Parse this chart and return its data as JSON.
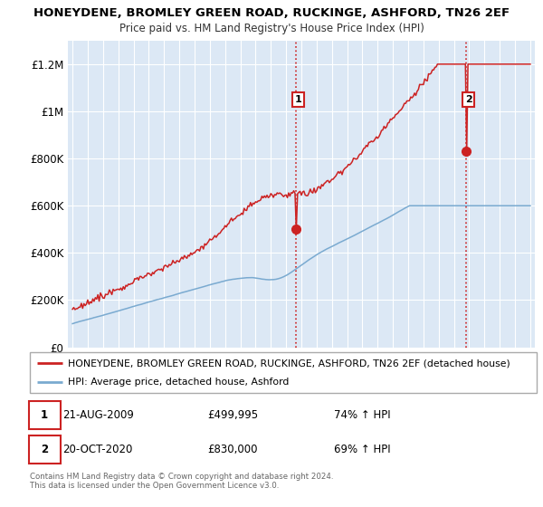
{
  "title": "HONEYDENE, BROMLEY GREEN ROAD, RUCKINGE, ASHFORD, TN26 2EF",
  "subtitle": "Price paid vs. HM Land Registry's House Price Index (HPI)",
  "ylim": [
    0,
    1300000
  ],
  "yticks": [
    0,
    200000,
    400000,
    600000,
    800000,
    1000000,
    1200000
  ],
  "ytick_labels": [
    "£0",
    "£200K",
    "£400K",
    "£600K",
    "£800K",
    "£1M",
    "£1.2M"
  ],
  "x_start_year": 1995,
  "x_end_year": 2025,
  "hpi_line_color": "#7aaad0",
  "price_line_color": "#cc2222",
  "sale1_year": 2009.64,
  "sale1_price": 499995,
  "sale2_year": 2020.8,
  "sale2_price": 830000,
  "vline_color": "#cc2222",
  "plot_bg_color": "#dce8f5",
  "legend_label_red": "HONEYDENE, BROMLEY GREEN ROAD, RUCKINGE, ASHFORD, TN26 2EF (detached house)",
  "legend_label_blue": "HPI: Average price, detached house, Ashford",
  "annotation1_date": "21-AUG-2009",
  "annotation1_price": "£499,995",
  "annotation1_hpi": "74% ↑ HPI",
  "annotation2_date": "20-OCT-2020",
  "annotation2_price": "£830,000",
  "annotation2_hpi": "69% ↑ HPI",
  "footer": "Contains HM Land Registry data © Crown copyright and database right 2024.\nThis data is licensed under the Open Government Licence v3.0."
}
